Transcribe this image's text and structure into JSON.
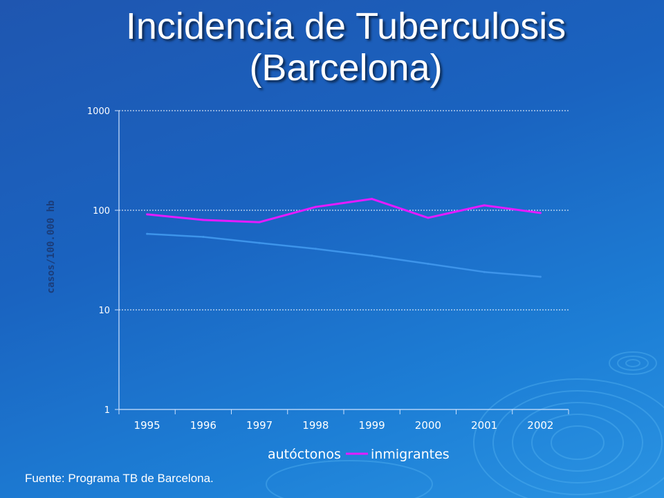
{
  "title_line1": "Incidencia de Tuberculosis",
  "title_line2": "(Barcelona)",
  "source": "Fuente: Programa TB de Barcelona.",
  "chart_data": {
    "type": "line",
    "x": [
      "1995",
      "1996",
      "1997",
      "1998",
      "1999",
      "2000",
      "2001",
      "2002"
    ],
    "ylabel": "casos/100.000 hb",
    "xlabel": "",
    "yscale": "log",
    "ylim": [
      1,
      1000
    ],
    "yticks": [
      "1",
      "10",
      "100",
      "1000"
    ],
    "grid": true,
    "legend_position": "bottom",
    "series": [
      {
        "name": "autóctonos",
        "color": "#3d94ea",
        "values": [
          58,
          54,
          47,
          41,
          35,
          29,
          24,
          21.5
        ]
      },
      {
        "name": "inmigrantes",
        "color": "#e41bff",
        "values": [
          91,
          80,
          76,
          108,
          130,
          84,
          112,
          94
        ]
      }
    ]
  }
}
